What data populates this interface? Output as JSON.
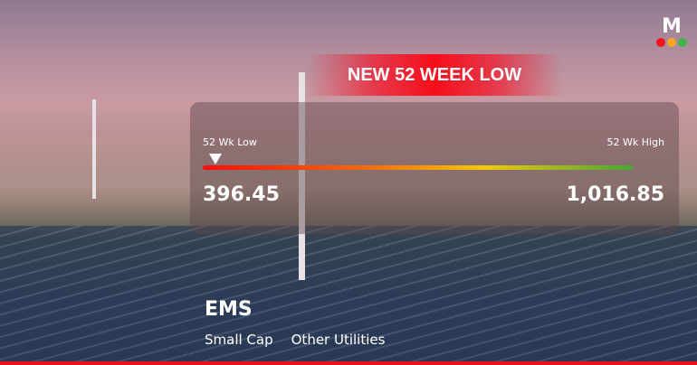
{
  "banner": {
    "title": "NEW 52 WEEK LOW"
  },
  "range": {
    "low_label": "52 Wk Low",
    "high_label": "52 Wk High",
    "low_value": "396.45",
    "high_value": "1,016.85",
    "current_position_fraction": 0.0
  },
  "stock": {
    "ticker": "EMS",
    "tags": [
      "Small Cap",
      "Other Utilities"
    ]
  },
  "logo": {
    "letter": "M",
    "dot_colors": [
      "#f0141e",
      "#f5a623",
      "#3cb54a"
    ]
  },
  "colors": {
    "accent": "#f70d1a",
    "bar_start": "#f50d0d",
    "bar_mid": "#f3c90c",
    "bar_end": "#46a536"
  }
}
